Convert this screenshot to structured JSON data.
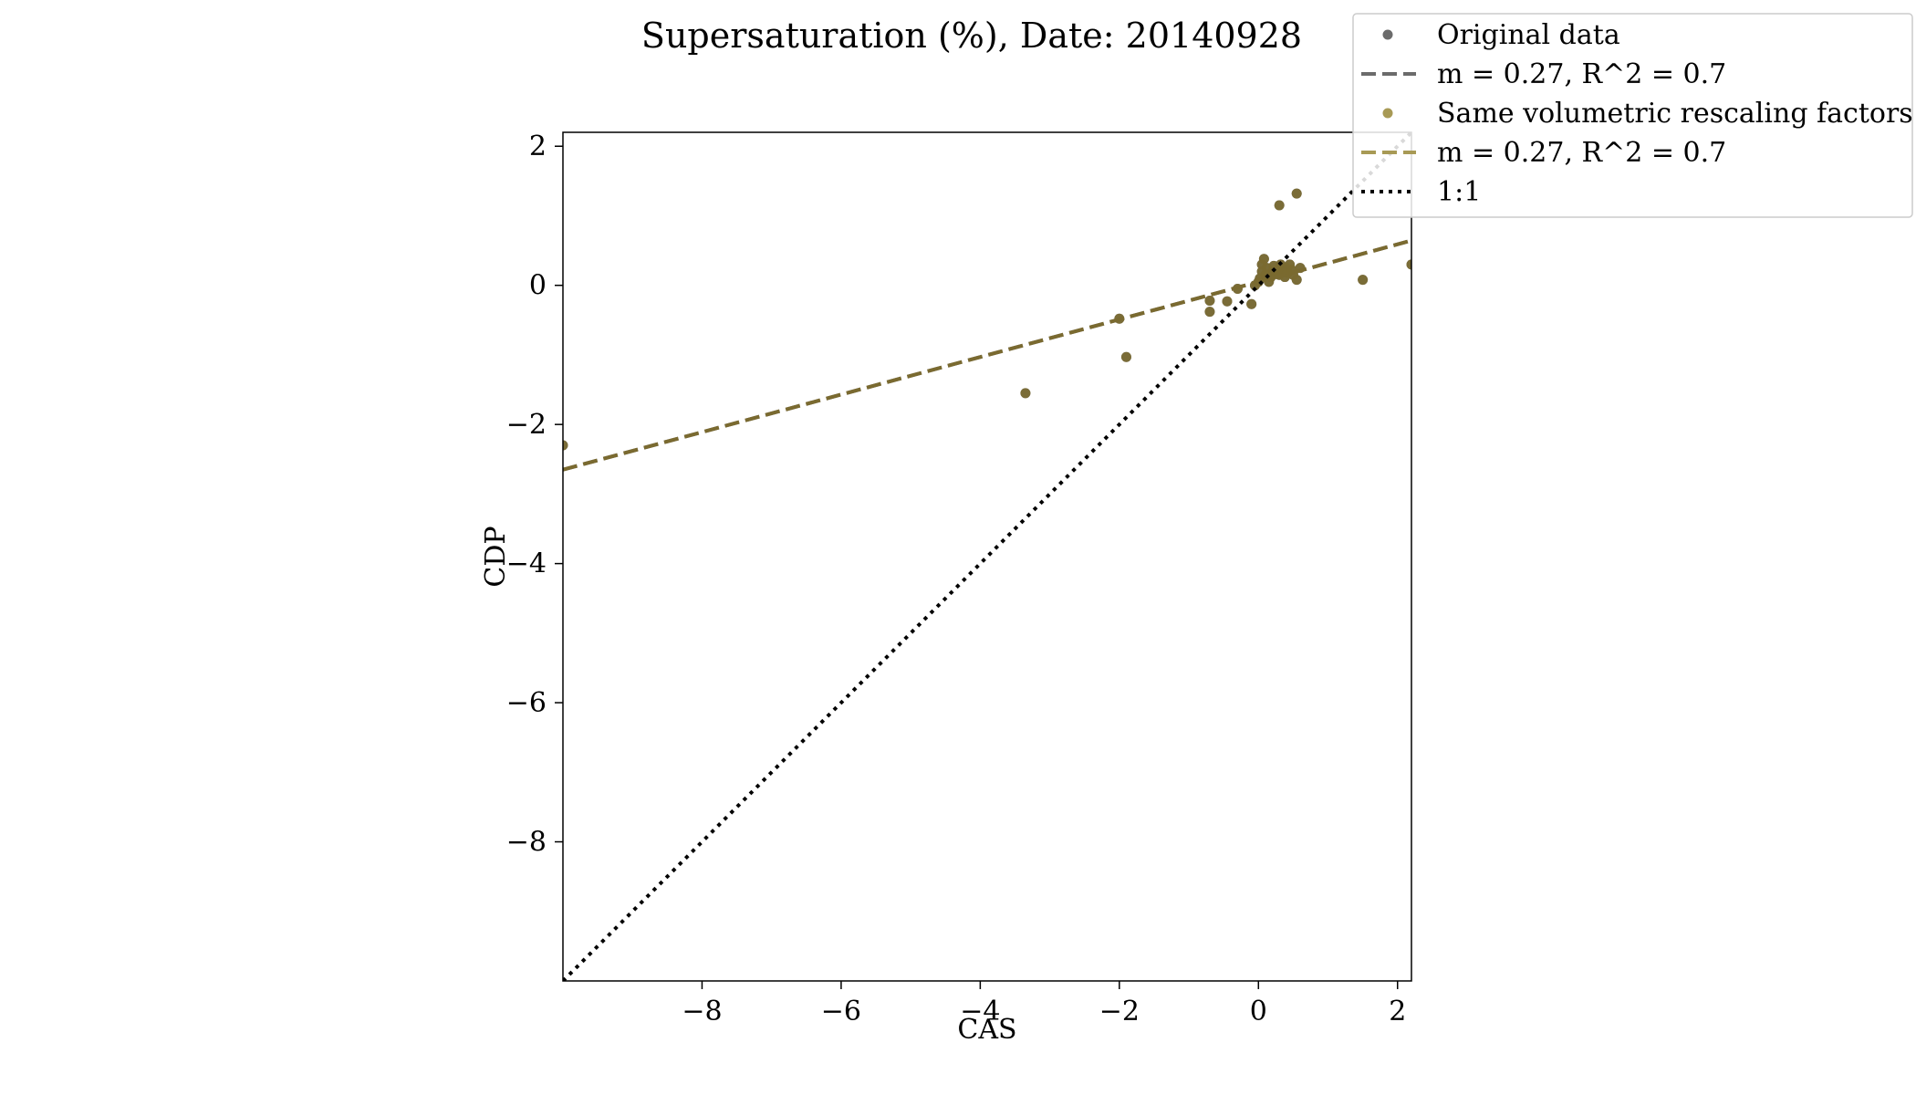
{
  "chart_data": {
    "type": "scatter",
    "title": "Supersaturation (%), Date: 20140928",
    "xlabel": "CAS",
    "ylabel": "CDP",
    "xlim": [
      -10,
      2.2
    ],
    "ylim": [
      -10,
      2.2
    ],
    "xticks": [
      -8,
      -6,
      -4,
      -2,
      0,
      2
    ],
    "yticks": [
      2,
      0,
      -2,
      -4,
      -6,
      -8
    ],
    "xtick_labels": [
      "−8",
      "−6",
      "−4",
      "−2",
      "0",
      "2"
    ],
    "ytick_labels": [
      "2",
      "0",
      "−2",
      "−4",
      "−6",
      "−8"
    ],
    "grid": false,
    "legend_placement": "top-right",
    "colors": {
      "original": "#6b6b6b",
      "rescaled": "#a89a55",
      "overlay": "#7a6a30",
      "one_to_one": "#000000"
    },
    "series": [
      {
        "name": "Original data",
        "kind": "scatter",
        "points": [
          [
            -10.0,
            -2.3
          ],
          [
            -3.35,
            -1.55
          ],
          [
            -2.0,
            -0.48
          ],
          [
            -1.9,
            -1.03
          ],
          [
            -0.7,
            -0.22
          ],
          [
            -0.7,
            -0.38
          ],
          [
            -0.45,
            -0.23
          ],
          [
            -0.3,
            -0.05
          ],
          [
            -0.1,
            -0.27
          ],
          [
            -0.05,
            0.0
          ],
          [
            0.0,
            0.05
          ],
          [
            0.02,
            0.1
          ],
          [
            0.05,
            0.2
          ],
          [
            0.05,
            0.3
          ],
          [
            0.08,
            0.38
          ],
          [
            0.1,
            0.15
          ],
          [
            0.12,
            0.25
          ],
          [
            0.15,
            0.05
          ],
          [
            0.18,
            0.12
          ],
          [
            0.2,
            0.2
          ],
          [
            0.22,
            0.28
          ],
          [
            0.25,
            0.18
          ],
          [
            0.28,
            0.22
          ],
          [
            0.3,
            0.15
          ],
          [
            0.32,
            0.3
          ],
          [
            0.35,
            0.2
          ],
          [
            0.38,
            0.12
          ],
          [
            0.4,
            0.25
          ],
          [
            0.42,
            0.18
          ],
          [
            0.45,
            0.3
          ],
          [
            0.48,
            0.22
          ],
          [
            0.5,
            0.15
          ],
          [
            0.55,
            0.08
          ],
          [
            0.6,
            0.25
          ],
          [
            0.3,
            1.15
          ],
          [
            0.55,
            1.32
          ],
          [
            1.5,
            0.08
          ],
          [
            2.2,
            0.3
          ]
        ]
      },
      {
        "name": "m = 0.27, R^2 = 0.7",
        "kind": "fit",
        "slope": 0.27,
        "intercept": 0.05
      },
      {
        "name": "Same volumetric rescaling factors",
        "kind": "scatter",
        "points": [
          [
            -10.0,
            -2.3
          ],
          [
            -3.35,
            -1.55
          ],
          [
            -2.0,
            -0.48
          ],
          [
            -1.9,
            -1.03
          ],
          [
            -0.7,
            -0.22
          ],
          [
            -0.7,
            -0.38
          ],
          [
            -0.45,
            -0.23
          ],
          [
            -0.3,
            -0.05
          ],
          [
            -0.1,
            -0.27
          ],
          [
            -0.05,
            0.0
          ],
          [
            0.0,
            0.05
          ],
          [
            0.02,
            0.1
          ],
          [
            0.05,
            0.2
          ],
          [
            0.05,
            0.3
          ],
          [
            0.08,
            0.38
          ],
          [
            0.1,
            0.15
          ],
          [
            0.12,
            0.25
          ],
          [
            0.15,
            0.05
          ],
          [
            0.18,
            0.12
          ],
          [
            0.2,
            0.2
          ],
          [
            0.22,
            0.28
          ],
          [
            0.25,
            0.18
          ],
          [
            0.28,
            0.22
          ],
          [
            0.3,
            0.15
          ],
          [
            0.32,
            0.3
          ],
          [
            0.35,
            0.2
          ],
          [
            0.38,
            0.12
          ],
          [
            0.4,
            0.25
          ],
          [
            0.42,
            0.18
          ],
          [
            0.45,
            0.3
          ],
          [
            0.48,
            0.22
          ],
          [
            0.5,
            0.15
          ],
          [
            0.55,
            0.08
          ],
          [
            0.6,
            0.25
          ],
          [
            0.3,
            1.15
          ],
          [
            0.55,
            1.32
          ],
          [
            1.5,
            0.08
          ],
          [
            2.2,
            0.3
          ]
        ]
      },
      {
        "name": "m = 0.27, R^2 = 0.7",
        "kind": "fit",
        "slope": 0.27,
        "intercept": 0.05
      },
      {
        "name": "1:1",
        "kind": "identity"
      }
    ]
  }
}
